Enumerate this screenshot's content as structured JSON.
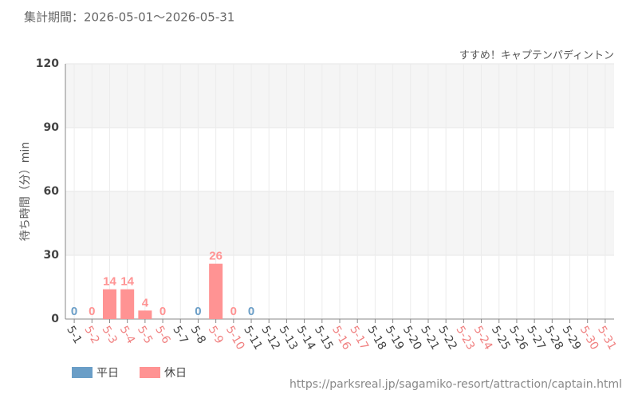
{
  "header": "集計期間：2026-05-01～2026-05-31",
  "footer": "https://parksreal.jp/sagamiko-resort/attraction/captain.html",
  "chart_data": {
    "type": "bar",
    "subtitle": "すすめ！キャプテンパディントン",
    "y_label": "待ち時間（分）min",
    "categories": [
      "5-1",
      "5-2",
      "5-3",
      "5-4",
      "5-5",
      "5-6",
      "5-7",
      "5-8",
      "5-9",
      "5-10",
      "5-11",
      "5-12",
      "5-13",
      "5-14",
      "5-15",
      "5-16",
      "5-17",
      "5-18",
      "5-19",
      "5-20",
      "5-21",
      "5-22",
      "5-23",
      "5-24",
      "5-25",
      "5-26",
      "5-27",
      "5-28",
      "5-29",
      "5-30",
      "5-31"
    ],
    "category_colors": [
      "#444",
      "#f08080",
      "#f08080",
      "#f08080",
      "#f08080",
      "#f08080",
      "#444",
      "#444",
      "#f08080",
      "#f08080",
      "#444",
      "#444",
      "#444",
      "#444",
      "#444",
      "#f08080",
      "#f08080",
      "#444",
      "#444",
      "#444",
      "#444",
      "#444",
      "#f08080",
      "#f08080",
      "#444",
      "#444",
      "#444",
      "#444",
      "#444",
      "#f08080",
      "#f08080"
    ],
    "series": [
      {
        "name": "平日",
        "color": "#6a9ec7",
        "values": [
          0,
          null,
          null,
          null,
          null,
          null,
          null,
          0,
          null,
          null,
          0,
          null,
          null,
          null,
          null,
          null,
          null,
          null,
          null,
          null,
          null,
          null,
          null,
          null,
          null,
          null,
          null,
          null,
          null,
          null,
          null
        ]
      },
      {
        "name": "休日",
        "color": "#ff9393",
        "values": [
          null,
          0,
          14,
          14,
          4,
          0,
          null,
          null,
          26,
          0,
          null,
          null,
          null,
          null,
          null,
          null,
          null,
          null,
          null,
          null,
          null,
          null,
          null,
          null,
          null,
          null,
          null,
          null,
          null,
          null,
          null
        ]
      }
    ],
    "ylim": [
      0,
      120
    ],
    "yticks": [
      0,
      30,
      60,
      90,
      120
    ],
    "grid": true
  }
}
